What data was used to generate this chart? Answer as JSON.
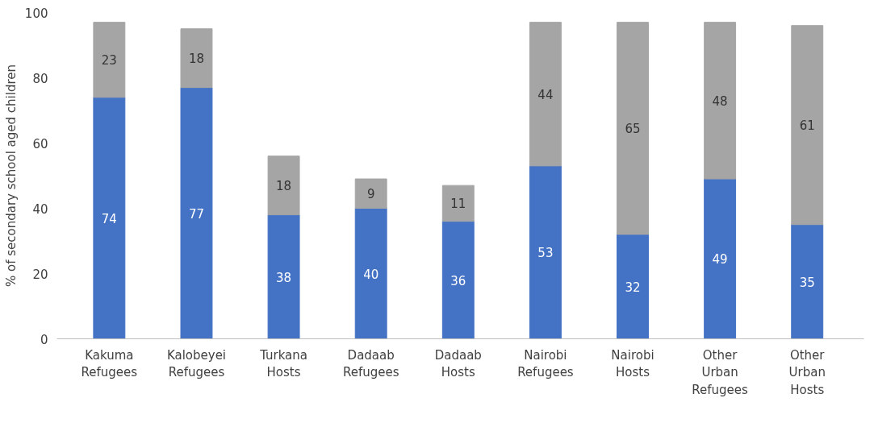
{
  "chart_data": {
    "type": "bar",
    "stacked": true,
    "ylabel": "% of secondary school aged children",
    "categories": [
      "Kakuma Refugees",
      "Kalobeyei Refugees",
      "Turkana Hosts",
      "Dadaab Refugees",
      "Dadaab Hosts",
      "Nairobi Refugees",
      "Nairobi Hosts",
      "Other Urban Refugees",
      "Other Urban Hosts"
    ],
    "series": [
      {
        "color": "#4472c4",
        "values": [
          74,
          77,
          38,
          40,
          36,
          53,
          32,
          49,
          35
        ]
      },
      {
        "color": "#a5a5a5",
        "values": [
          23,
          18,
          18,
          9,
          11,
          44,
          65,
          48,
          61
        ]
      }
    ],
    "ylim": [
      0,
      100
    ],
    "yticks": [
      0,
      20,
      40,
      60,
      80,
      100
    ],
    "grid": false,
    "data_labels": true
  }
}
